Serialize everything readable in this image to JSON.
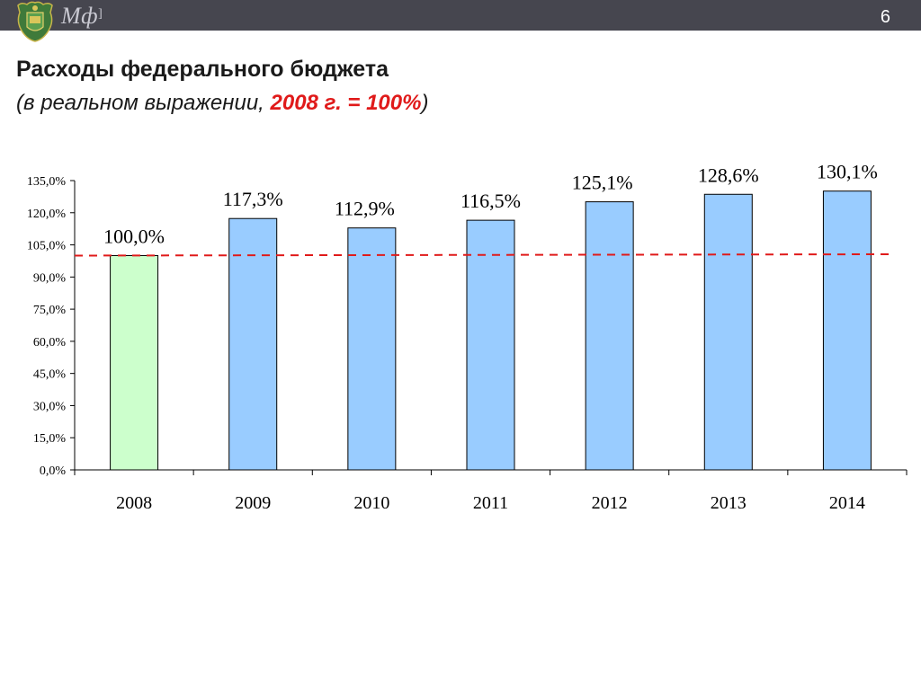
{
  "header": {
    "logo_text": "Мф",
    "logo_suffix": "]",
    "slide_number": "6",
    "logo_icon": "coat-of-arms-icon"
  },
  "slide": {
    "title": "Расходы федерального бюджета",
    "subtitle_prefix": "(в реальном выражении, ",
    "subtitle_accent": "2008 г. = 100%",
    "subtitle_suffix": ")"
  },
  "colors": {
    "topbar": "#46464f",
    "bar_base": "#ccffcc",
    "bar": "#99ccff",
    "reference_line": "#e01a1a",
    "accent_text": "#e01a1a"
  },
  "chart_data": {
    "type": "bar",
    "categories": [
      "2008",
      "2009",
      "2010",
      "2011",
      "2012",
      "2013",
      "2014"
    ],
    "values": [
      100.0,
      117.3,
      112.9,
      116.5,
      125.1,
      128.6,
      130.1
    ],
    "data_labels": [
      "100,0%",
      "117,3%",
      "112,9%",
      "116,5%",
      "125,1%",
      "128,6%",
      "130,1%"
    ],
    "highlight_index": 0,
    "ylim": [
      0,
      135
    ],
    "yticks": [
      0,
      15,
      30,
      45,
      60,
      75,
      90,
      105,
      120,
      135
    ],
    "ytick_labels": [
      "0,0%",
      "15,0%",
      "30,0%",
      "45,0%",
      "60,0%",
      "75,0%",
      "90,0%",
      "105,0%",
      "120,0%",
      "135,0%"
    ],
    "reference_line": {
      "value": 100,
      "style": "dashed"
    },
    "grid": false,
    "legend": "none",
    "title": "",
    "xlabel": "",
    "ylabel": ""
  }
}
